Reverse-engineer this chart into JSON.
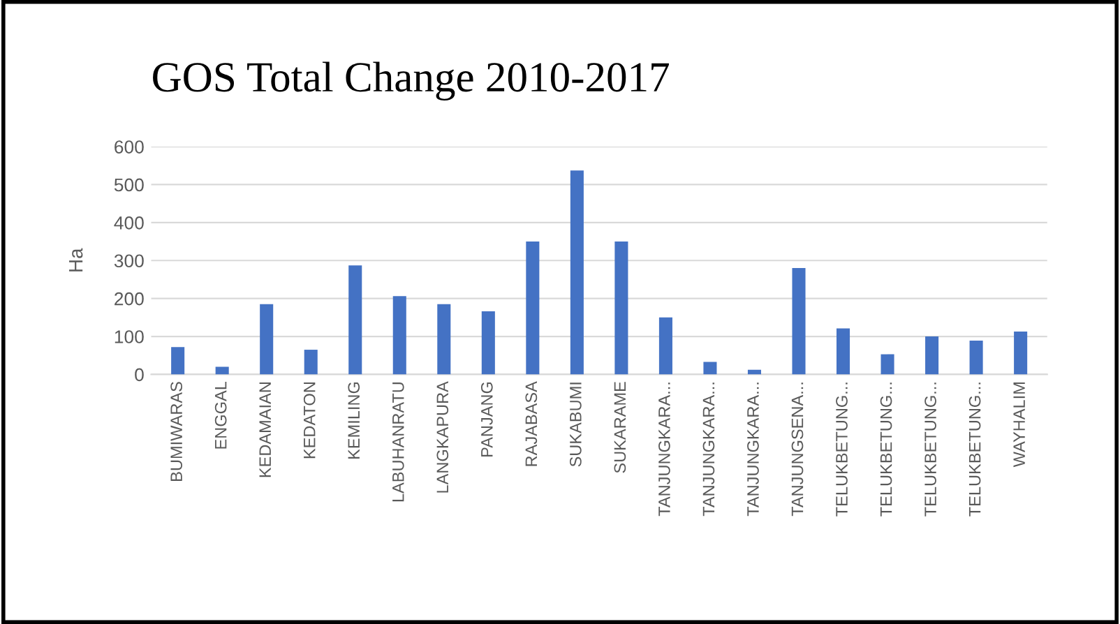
{
  "chart_data": {
    "type": "bar",
    "title": "GOS Total Change 2010-2017",
    "ylabel": "Ha",
    "categories": [
      "BUMIWARAS",
      "ENGGAL",
      "KEDAMAIAN",
      "KEDATON",
      "KEMILING",
      "LABUHANRATU",
      "LANGKAPURA",
      "PANJANG",
      "RAJABASA",
      "SUKABUMI",
      "SUKARAME",
      "TANJUNGKARA...",
      "TANJUNGKARA...",
      "TANJUNGKARA...",
      "TANJUNGSENA...",
      "TELUKBETUNG...",
      "TELUKBETUNG...",
      "TELUKBETUNG...",
      "TELUKBETUNG...",
      "WAYHALIM"
    ],
    "values": [
      72,
      20,
      185,
      65,
      287,
      206,
      185,
      166,
      350,
      537,
      350,
      150,
      33,
      12,
      280,
      121,
      53,
      100,
      89,
      113
    ],
    "color": "#4472c4",
    "ylim": [
      0,
      600
    ],
    "yticks": [
      0,
      100,
      200,
      300,
      400,
      500,
      600
    ],
    "grid": "y"
  }
}
